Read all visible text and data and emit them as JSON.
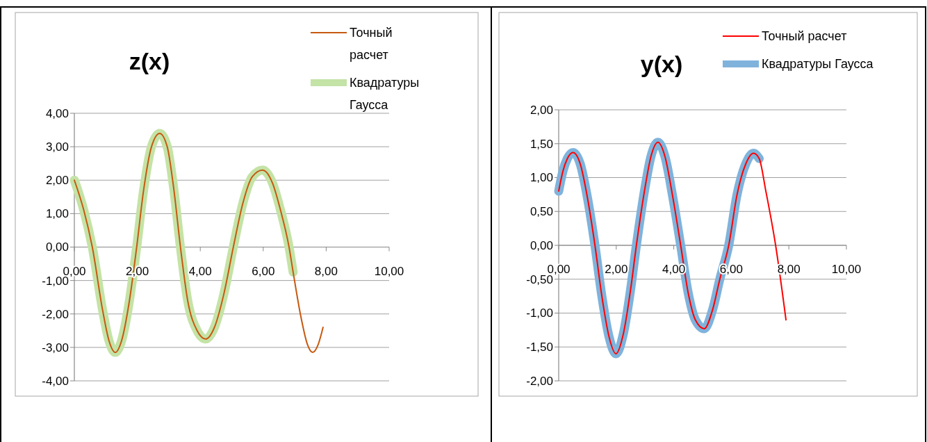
{
  "chart_data": [
    {
      "type": "line",
      "title": "z(x)",
      "legend": "top right",
      "grid": "y",
      "marker": "none",
      "xlim": [
        0,
        10
      ],
      "xticks": [
        {
          "value": 0,
          "label": "0,00"
        },
        {
          "value": 2,
          "label": "2,00"
        },
        {
          "value": 4,
          "label": "4,00"
        },
        {
          "value": 6,
          "label": "6,00"
        },
        {
          "value": 8,
          "label": "8,00"
        },
        {
          "value": 10,
          "label": "10,00"
        }
      ],
      "ylim": [
        -4,
        4
      ],
      "yticks": [
        {
          "value": 4,
          "label": "4,00"
        },
        {
          "value": 3,
          "label": "3,00"
        },
        {
          "value": 2,
          "label": "2,00"
        },
        {
          "value": 1,
          "label": "1,00"
        },
        {
          "value": 0,
          "label": "0,00"
        },
        {
          "value": -1,
          "label": "-1,00"
        },
        {
          "value": -2,
          "label": "-2,00"
        },
        {
          "value": -3,
          "label": "-3,00"
        },
        {
          "value": -4,
          "label": "-4,00"
        }
      ],
      "series": [
        {
          "name": "Точный расчет",
          "color": "#c65911",
          "x": [
            0,
            0.3,
            0.57,
            0.9,
            1.1,
            1.3,
            1.5,
            1.75,
            1.98,
            2.2,
            2.45,
            2.71,
            2.95,
            3.15,
            3.37,
            3.6,
            3.9,
            4.17,
            4.45,
            4.75,
            5.05,
            5.35,
            5.65,
            5.98,
            6.3,
            6.55,
            6.82,
            6.95,
            7.2,
            7.4,
            7.57,
            7.75,
            7.9
          ],
          "values": [
            2.0,
            1.1,
            0,
            -1.9,
            -2.8,
            -3.15,
            -2.8,
            -1.6,
            0,
            1.7,
            3.0,
            3.4,
            3.0,
            1.8,
            0,
            -1.6,
            -2.5,
            -2.75,
            -2.4,
            -1.4,
            0,
            1.3,
            2.1,
            2.3,
            1.9,
            1.1,
            0,
            -0.75,
            -2.1,
            -2.9,
            -3.15,
            -2.9,
            -2.4
          ]
        },
        {
          "name": "Квадратуры Гаусса",
          "color": "#c4e3a6",
          "x": [
            0,
            0.3,
            0.57,
            0.9,
            1.1,
            1.3,
            1.5,
            1.75,
            1.98,
            2.2,
            2.45,
            2.71,
            2.95,
            3.15,
            3.37,
            3.6,
            3.9,
            4.17,
            4.45,
            4.75,
            5.05,
            5.35,
            5.65,
            5.98,
            6.3,
            6.55,
            6.82,
            6.95
          ],
          "values": [
            2.0,
            1.1,
            0,
            -1.9,
            -2.8,
            -3.15,
            -2.8,
            -1.6,
            0,
            1.7,
            3.0,
            3.4,
            3.0,
            1.8,
            0,
            -1.6,
            -2.5,
            -2.75,
            -2.4,
            -1.4,
            0,
            1.3,
            2.1,
            2.3,
            1.9,
            1.1,
            0,
            -0.75
          ]
        }
      ]
    },
    {
      "type": "line",
      "title": "y(x)",
      "legend": "top right",
      "grid": "y",
      "marker": "none",
      "xlim": [
        0,
        10
      ],
      "xticks": [
        {
          "value": 0,
          "label": "0,00"
        },
        {
          "value": 2,
          "label": "2,00"
        },
        {
          "value": 4,
          "label": "4,00"
        },
        {
          "value": 6,
          "label": "6,00"
        },
        {
          "value": 8,
          "label": "8,00"
        },
        {
          "value": 10,
          "label": "10,00"
        }
      ],
      "ylim": [
        -2,
        2
      ],
      "yticks": [
        {
          "value": 2,
          "label": "2,00"
        },
        {
          "value": 1.5,
          "label": "1,50"
        },
        {
          "value": 1,
          "label": "1,00"
        },
        {
          "value": 0.5,
          "label": "0,50"
        },
        {
          "value": 0,
          "label": "0,00"
        },
        {
          "value": -0.5,
          "label": "-0,50"
        },
        {
          "value": -1,
          "label": "-1,00"
        },
        {
          "value": -1.5,
          "label": "-1,50"
        },
        {
          "value": -2,
          "label": "-2,00"
        }
      ],
      "series": [
        {
          "name": "Точный расчет",
          "color": "#ff0000",
          "x": [
            0,
            0.15,
            0.3,
            0.5,
            0.75,
            1.0,
            1.26,
            1.5,
            1.75,
            1.99,
            2.25,
            2.5,
            2.7,
            3.0,
            3.2,
            3.45,
            3.7,
            3.95,
            4.24,
            4.5,
            4.75,
            5.06,
            5.35,
            5.6,
            5.91,
            6.2,
            6.5,
            6.77,
            6.97,
            7.2,
            7.54,
            7.9
          ],
          "values": [
            0.8,
            1.1,
            1.28,
            1.37,
            1.2,
            0.7,
            0,
            -0.75,
            -1.35,
            -1.6,
            -1.3,
            -0.65,
            0,
            0.85,
            1.3,
            1.52,
            1.3,
            0.75,
            0,
            -0.7,
            -1.1,
            -1.23,
            -0.95,
            -0.5,
            0,
            0.75,
            1.2,
            1.36,
            1.28,
            0.8,
            0,
            -1.1
          ]
        },
        {
          "name": "Квадратуры Гаусса",
          "color": "#7fb3dc",
          "x": [
            0,
            0.15,
            0.3,
            0.5,
            0.75,
            1.0,
            1.26,
            1.5,
            1.75,
            1.99,
            2.25,
            2.5,
            2.7,
            3.0,
            3.2,
            3.45,
            3.7,
            3.95,
            4.24,
            4.5,
            4.75,
            5.06,
            5.35,
            5.6,
            5.91,
            6.2,
            6.5,
            6.77,
            6.97
          ],
          "values": [
            0.8,
            1.1,
            1.28,
            1.37,
            1.2,
            0.7,
            0,
            -0.75,
            -1.35,
            -1.6,
            -1.3,
            -0.65,
            0,
            0.85,
            1.3,
            1.52,
            1.3,
            0.75,
            0,
            -0.7,
            -1.1,
            -1.23,
            -0.95,
            -0.5,
            0,
            0.75,
            1.2,
            1.36,
            1.28
          ]
        }
      ]
    }
  ]
}
